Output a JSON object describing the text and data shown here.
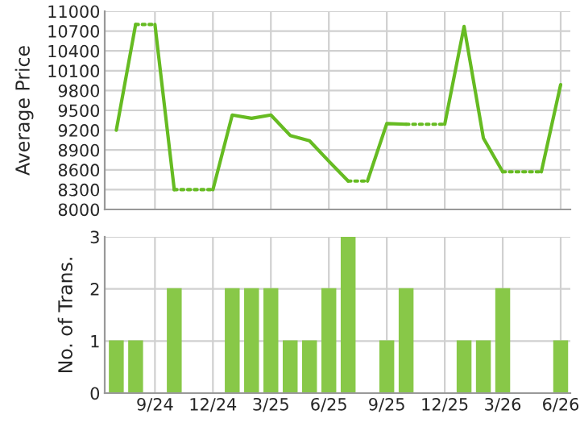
{
  "chart_data": [
    {
      "type": "line",
      "ylabel": "Average Price",
      "categories": [
        null,
        null,
        null,
        null,
        null,
        null,
        null,
        null,
        null,
        null,
        null,
        null,
        null,
        null,
        null,
        null,
        null,
        null,
        null,
        null,
        null,
        null,
        null,
        null
      ],
      "tick_labels": "y",
      "ylim": [
        8000,
        11000
      ],
      "yticks": [
        8000,
        8300,
        8600,
        8900,
        9200,
        9500,
        9800,
        10100,
        10400,
        10700,
        11000
      ],
      "grid": true,
      "series": [
        {
          "color": "#66bb22",
          "line_style": "solid",
          "values": [
            9200,
            10800,
            null,
            null,
            null,
            null,
            null,
            null,
            null,
            null,
            null,
            null,
            null,
            null,
            null,
            null,
            null,
            null,
            null,
            null,
            null,
            null,
            null,
            null
          ]
        },
        {
          "color": "#66bb22",
          "line_style": "dotted",
          "values": [
            null,
            10800,
            10800,
            null,
            null,
            null,
            null,
            null,
            null,
            null,
            null,
            null,
            null,
            null,
            null,
            null,
            null,
            null,
            null,
            null,
            null,
            null,
            null,
            null
          ]
        },
        {
          "color": "#66bb22",
          "line_style": "solid",
          "values": [
            null,
            null,
            10800,
            8300,
            null,
            null,
            null,
            null,
            null,
            null,
            null,
            null,
            null,
            null,
            null,
            null,
            null,
            null,
            null,
            null,
            null,
            null,
            null,
            null
          ]
        },
        {
          "color": "#66bb22",
          "line_style": "dotted",
          "values": [
            null,
            null,
            null,
            8300,
            8300,
            8300,
            null,
            null,
            null,
            null,
            null,
            null,
            null,
            null,
            null,
            null,
            null,
            null,
            null,
            null,
            null,
            null,
            null,
            null
          ]
        },
        {
          "color": "#66bb22",
          "line_style": "solid",
          "values": [
            null,
            null,
            null,
            null,
            null,
            8300,
            9430,
            9380,
            9430,
            9120,
            9040,
            8730,
            8430,
            null,
            null,
            null,
            null,
            null,
            null,
            null,
            null,
            null,
            null,
            null
          ]
        },
        {
          "color": "#66bb22",
          "line_style": "dotted",
          "values": [
            null,
            null,
            null,
            null,
            null,
            null,
            null,
            null,
            null,
            null,
            null,
            null,
            8430,
            8430,
            null,
            null,
            null,
            null,
            null,
            null,
            null,
            null,
            null,
            null
          ]
        },
        {
          "color": "#66bb22",
          "line_style": "solid",
          "values": [
            null,
            null,
            null,
            null,
            null,
            null,
            null,
            null,
            null,
            null,
            null,
            null,
            null,
            8430,
            9300,
            9290,
            null,
            null,
            null,
            null,
            null,
            null,
            null,
            null
          ]
        },
        {
          "color": "#66bb22",
          "line_style": "dotted",
          "values": [
            null,
            null,
            null,
            null,
            null,
            null,
            null,
            null,
            null,
            null,
            null,
            null,
            null,
            null,
            null,
            9290,
            9290,
            9290,
            null,
            null,
            null,
            null,
            null,
            null
          ]
        },
        {
          "color": "#66bb22",
          "line_style": "solid",
          "values": [
            null,
            null,
            null,
            null,
            null,
            null,
            null,
            null,
            null,
            null,
            null,
            null,
            null,
            null,
            null,
            null,
            null,
            9290,
            10770,
            9080,
            8570,
            null,
            null,
            null
          ]
        },
        {
          "color": "#66bb22",
          "line_style": "dotted",
          "values": [
            null,
            null,
            null,
            null,
            null,
            null,
            null,
            null,
            null,
            null,
            null,
            null,
            null,
            null,
            null,
            null,
            null,
            null,
            null,
            null,
            8570,
            8570,
            8570,
            null
          ]
        },
        {
          "color": "#66bb22",
          "line_style": "solid",
          "values": [
            null,
            null,
            null,
            null,
            null,
            null,
            null,
            null,
            null,
            null,
            null,
            null,
            null,
            null,
            null,
            null,
            null,
            null,
            null,
            null,
            null,
            null,
            8570,
            9890
          ]
        }
      ]
    },
    {
      "type": "bar",
      "ylabel": "No. of Trans.",
      "categories": [
        null,
        null,
        "9/24",
        null,
        null,
        "12/24",
        null,
        null,
        "3/25",
        null,
        null,
        "6/25",
        null,
        null,
        "9/25",
        null,
        null,
        "12/25",
        null,
        null,
        "3/26",
        null,
        null,
        "6/26"
      ],
      "ylim": [
        0,
        3
      ],
      "yticks": [
        0,
        1,
        2,
        3
      ],
      "grid": true,
      "color": "#88c848",
      "values": [
        1,
        1,
        0,
        2,
        0,
        0,
        2,
        2,
        2,
        1,
        1,
        2,
        3,
        0,
        1,
        2,
        0,
        0,
        1,
        1,
        2,
        0,
        0,
        1
      ]
    }
  ]
}
